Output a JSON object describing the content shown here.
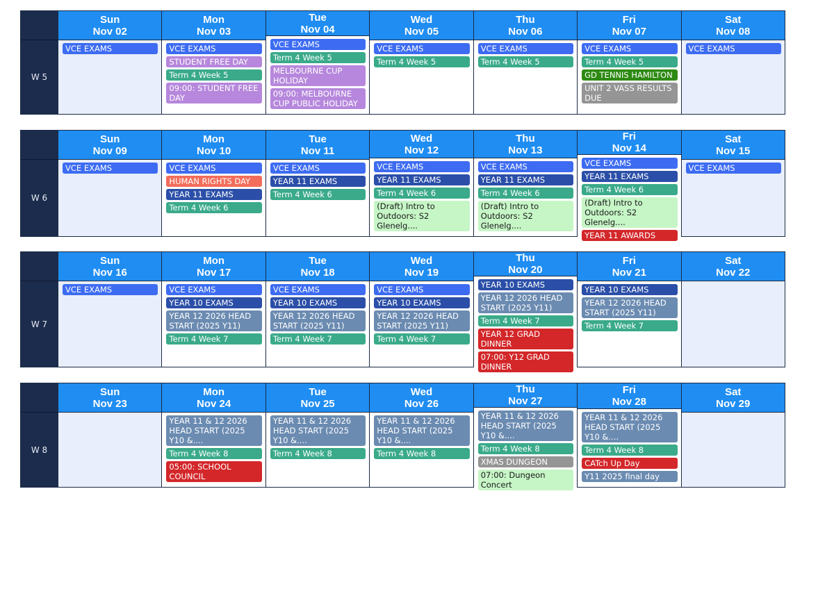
{
  "colors": {
    "header_blue": "#1f8df2",
    "week_label_navy": "#1c2c4c",
    "weekend_fill": "#e8eefb",
    "vce": "#3d6cf2",
    "term": "#3aaa8a",
    "purple": "#b687dc",
    "navy_exam": "#2b4fa8",
    "slate": "#6b8bb1",
    "red": "#d3272a",
    "salmon": "#f26d5b",
    "green_dark": "#2d8a12",
    "gray": "#959595",
    "light_green": "#c6f5c6"
  },
  "weeks": [
    {
      "label": "W 5",
      "days": [
        {
          "dow": "Sun",
          "date": "Nov 02",
          "weekend": true,
          "events": [
            {
              "text": "VCE EXAMS",
              "color": "vce"
            }
          ]
        },
        {
          "dow": "Mon",
          "date": "Nov 03",
          "events": [
            {
              "text": "VCE EXAMS",
              "color": "vce"
            },
            {
              "text": "STUDENT FREE DAY",
              "color": "purple"
            },
            {
              "text": "Term 4 Week 5",
              "color": "term"
            },
            {
              "text": "09:00: STUDENT FREE DAY",
              "color": "purple"
            }
          ]
        },
        {
          "dow": "Tue",
          "date": "Nov 04",
          "events": [
            {
              "text": "VCE EXAMS",
              "color": "vce"
            },
            {
              "text": "Term 4 Week 5",
              "color": "term"
            },
            {
              "text": "MELBOURNE CUP HOLIDAY",
              "color": "purple"
            },
            {
              "text": "09:00: MELBOURNE CUP PUBLIC HOLIDAY",
              "color": "purple"
            }
          ]
        },
        {
          "dow": "Wed",
          "date": "Nov 05",
          "events": [
            {
              "text": "VCE EXAMS",
              "color": "vce"
            },
            {
              "text": "Term 4 Week 5",
              "color": "term"
            }
          ]
        },
        {
          "dow": "Thu",
          "date": "Nov 06",
          "events": [
            {
              "text": "VCE EXAMS",
              "color": "vce"
            },
            {
              "text": "Term 4 Week 5",
              "color": "term"
            }
          ]
        },
        {
          "dow": "Fri",
          "date": "Nov 07",
          "events": [
            {
              "text": "VCE EXAMS",
              "color": "vce"
            },
            {
              "text": "Term 4 Week 5",
              "color": "term"
            },
            {
              "text": "GD TENNIS HAMILTON",
              "color": "green_dark"
            },
            {
              "text": "UNIT 2 VASS RESULTS DUE",
              "color": "gray"
            }
          ]
        },
        {
          "dow": "Sat",
          "date": "Nov 08",
          "weekend": true,
          "events": [
            {
              "text": "VCE EXAMS",
              "color": "vce"
            }
          ]
        }
      ]
    },
    {
      "label": "W 6",
      "days": [
        {
          "dow": "Sun",
          "date": "Nov 09",
          "weekend": true,
          "events": [
            {
              "text": "VCE EXAMS",
              "color": "vce"
            }
          ]
        },
        {
          "dow": "Mon",
          "date": "Nov 10",
          "events": [
            {
              "text": "VCE EXAMS",
              "color": "vce"
            },
            {
              "text": "HUMAN RIGHTS DAY",
              "color": "salmon"
            },
            {
              "text": "YEAR 11 EXAMS",
              "color": "navy_exam"
            },
            {
              "text": "Term 4 Week 6",
              "color": "term"
            }
          ]
        },
        {
          "dow": "Tue",
          "date": "Nov 11",
          "events": [
            {
              "text": "VCE EXAMS",
              "color": "vce"
            },
            {
              "text": "YEAR 11 EXAMS",
              "color": "navy_exam"
            },
            {
              "text": "Term 4 Week 6",
              "color": "term"
            }
          ]
        },
        {
          "dow": "Wed",
          "date": "Nov 12",
          "events": [
            {
              "text": "VCE EXAMS",
              "color": "vce"
            },
            {
              "text": "YEAR 11 EXAMS",
              "color": "navy_exam"
            },
            {
              "text": "Term 4 Week 6",
              "color": "term"
            },
            {
              "text": "(Draft) Intro to Outdoors: S2 Glenelg....",
              "color": "light_green"
            }
          ]
        },
        {
          "dow": "Thu",
          "date": "Nov 13",
          "events": [
            {
              "text": "VCE EXAMS",
              "color": "vce"
            },
            {
              "text": "YEAR 11 EXAMS",
              "color": "navy_exam"
            },
            {
              "text": "Term 4 Week 6",
              "color": "term"
            },
            {
              "text": "(Draft) Intro to Outdoors: S2 Glenelg....",
              "color": "light_green"
            }
          ]
        },
        {
          "dow": "Fri",
          "date": "Nov 14",
          "events": [
            {
              "text": "VCE EXAMS",
              "color": "vce"
            },
            {
              "text": "YEAR 11 EXAMS",
              "color": "navy_exam"
            },
            {
              "text": "Term 4 Week 6",
              "color": "term"
            },
            {
              "text": "(Draft) Intro to Outdoors: S2 Glenelg....",
              "color": "light_green"
            },
            {
              "text": "YEAR 11 AWARDS",
              "color": "red"
            }
          ]
        },
        {
          "dow": "Sat",
          "date": "Nov 15",
          "weekend": true,
          "events": [
            {
              "text": "VCE EXAMS",
              "color": "vce"
            }
          ]
        }
      ]
    },
    {
      "label": "W 7",
      "days": [
        {
          "dow": "Sun",
          "date": "Nov 16",
          "weekend": true,
          "events": [
            {
              "text": "VCE EXAMS",
              "color": "vce"
            }
          ]
        },
        {
          "dow": "Mon",
          "date": "Nov 17",
          "events": [
            {
              "text": "VCE EXAMS",
              "color": "vce"
            },
            {
              "text": "YEAR 10 EXAMS",
              "color": "navy_exam"
            },
            {
              "text": "YEAR 12 2026 HEAD START (2025 Y11)",
              "color": "slate"
            },
            {
              "text": "Term 4 Week 7",
              "color": "term"
            }
          ]
        },
        {
          "dow": "Tue",
          "date": "Nov 18",
          "events": [
            {
              "text": "VCE EXAMS",
              "color": "vce"
            },
            {
              "text": "YEAR 10 EXAMS",
              "color": "navy_exam"
            },
            {
              "text": "YEAR 12 2026 HEAD START (2025 Y11)",
              "color": "slate"
            },
            {
              "text": "Term 4 Week 7",
              "color": "term"
            }
          ]
        },
        {
          "dow": "Wed",
          "date": "Nov 19",
          "events": [
            {
              "text": "VCE EXAMS",
              "color": "vce"
            },
            {
              "text": "YEAR 10 EXAMS",
              "color": "navy_exam"
            },
            {
              "text": "YEAR 12 2026 HEAD START (2025 Y11)",
              "color": "slate"
            },
            {
              "text": "Term 4 Week 7",
              "color": "term"
            }
          ]
        },
        {
          "dow": "Thu",
          "date": "Nov 20",
          "events": [
            {
              "text": "YEAR 10 EXAMS",
              "color": "navy_exam"
            },
            {
              "text": "YEAR 12 2026 HEAD START (2025 Y11)",
              "color": "slate"
            },
            {
              "text": "Term 4 Week 7",
              "color": "term"
            },
            {
              "text": "YEAR 12 GRAD DINNER",
              "color": "red"
            },
            {
              "text": "07:00: Y12 GRAD DINNER",
              "color": "red"
            }
          ]
        },
        {
          "dow": "Fri",
          "date": "Nov 21",
          "events": [
            {
              "text": "YEAR 10 EXAMS",
              "color": "navy_exam"
            },
            {
              "text": "YEAR 12 2026 HEAD START (2025 Y11)",
              "color": "slate"
            },
            {
              "text": "Term 4 Week 7",
              "color": "term"
            }
          ]
        },
        {
          "dow": "Sat",
          "date": "Nov 22",
          "weekend": true,
          "events": []
        }
      ]
    },
    {
      "label": "W 8",
      "days": [
        {
          "dow": "Sun",
          "date": "Nov 23",
          "weekend": true,
          "events": []
        },
        {
          "dow": "Mon",
          "date": "Nov 24",
          "events": [
            {
              "text": "YEAR 11 & 12 2026 HEAD START (2025 Y10 &....",
              "color": "slate"
            },
            {
              "text": "Term 4 Week 8",
              "color": "term"
            },
            {
              "text": "05:00: SCHOOL COUNCIL",
              "color": "red"
            }
          ]
        },
        {
          "dow": "Tue",
          "date": "Nov 25",
          "events": [
            {
              "text": "YEAR 11 & 12 2026 HEAD START (2025 Y10 &....",
              "color": "slate"
            },
            {
              "text": "Term 4 Week 8",
              "color": "term"
            }
          ]
        },
        {
          "dow": "Wed",
          "date": "Nov 26",
          "events": [
            {
              "text": "YEAR 11 & 12 2026 HEAD START (2025 Y10 &....",
              "color": "slate"
            },
            {
              "text": "Term 4 Week 8",
              "color": "term"
            }
          ]
        },
        {
          "dow": "Thu",
          "date": "Nov 27",
          "events": [
            {
              "text": "YEAR 11 & 12 2026 HEAD START (2025 Y10 &....",
              "color": "slate"
            },
            {
              "text": "Term 4 Week 8",
              "color": "term"
            },
            {
              "text": "XMAS DUNGEON",
              "color": "gray"
            },
            {
              "text": "07:00: Dungeon Concert",
              "color": "light_green"
            }
          ]
        },
        {
          "dow": "Fri",
          "date": "Nov 28",
          "events": [
            {
              "text": "YEAR 11 & 12 2026 HEAD START (2025 Y10 &....",
              "color": "slate"
            },
            {
              "text": "Term 4 Week 8",
              "color": "term"
            },
            {
              "text": "CATch Up Day",
              "color": "red"
            },
            {
              "text": "Y11 2025 final day",
              "color": "slate"
            }
          ]
        },
        {
          "dow": "Sat",
          "date": "Nov 29",
          "weekend": true,
          "events": []
        }
      ]
    }
  ]
}
